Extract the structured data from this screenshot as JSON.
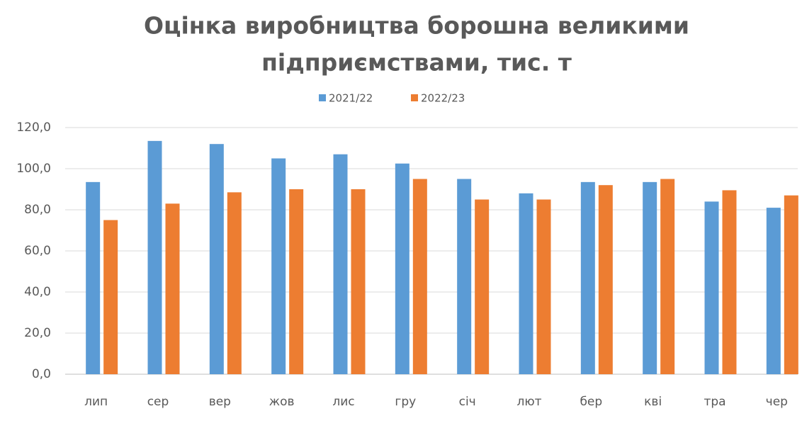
{
  "chart_data": {
    "type": "bar",
    "title": [
      "Оцінка виробництва борошна великими",
      "підприємствами, тис. т"
    ],
    "categories": [
      "лип",
      "сер",
      "вер",
      "жов",
      "лис",
      "гру",
      "січ",
      "лют",
      "бер",
      "кві",
      "тра",
      "чер"
    ],
    "series": [
      {
        "name": "2021/22",
        "color": "#5b9bd5",
        "values": [
          93.5,
          113.5,
          112,
          105,
          107,
          102.5,
          95,
          88,
          93.5,
          93.5,
          84,
          81
        ]
      },
      {
        "name": "2022/23",
        "color": "#ed7d31",
        "values": [
          75,
          83,
          88.5,
          90,
          90,
          95,
          85,
          85,
          92,
          95,
          89.5,
          87
        ]
      }
    ],
    "ylim": [
      0,
      120
    ],
    "yticks": [
      {
        "value": 0,
        "label": "0,0"
      },
      {
        "value": 20,
        "label": "20,0"
      },
      {
        "value": 40,
        "label": "40,0"
      },
      {
        "value": 60,
        "label": "60,0"
      },
      {
        "value": 80,
        "label": "80,0"
      },
      {
        "value": 100,
        "label": "100,0"
      },
      {
        "value": 120,
        "label": "120,0"
      }
    ],
    "grid": true,
    "legend": "top"
  }
}
